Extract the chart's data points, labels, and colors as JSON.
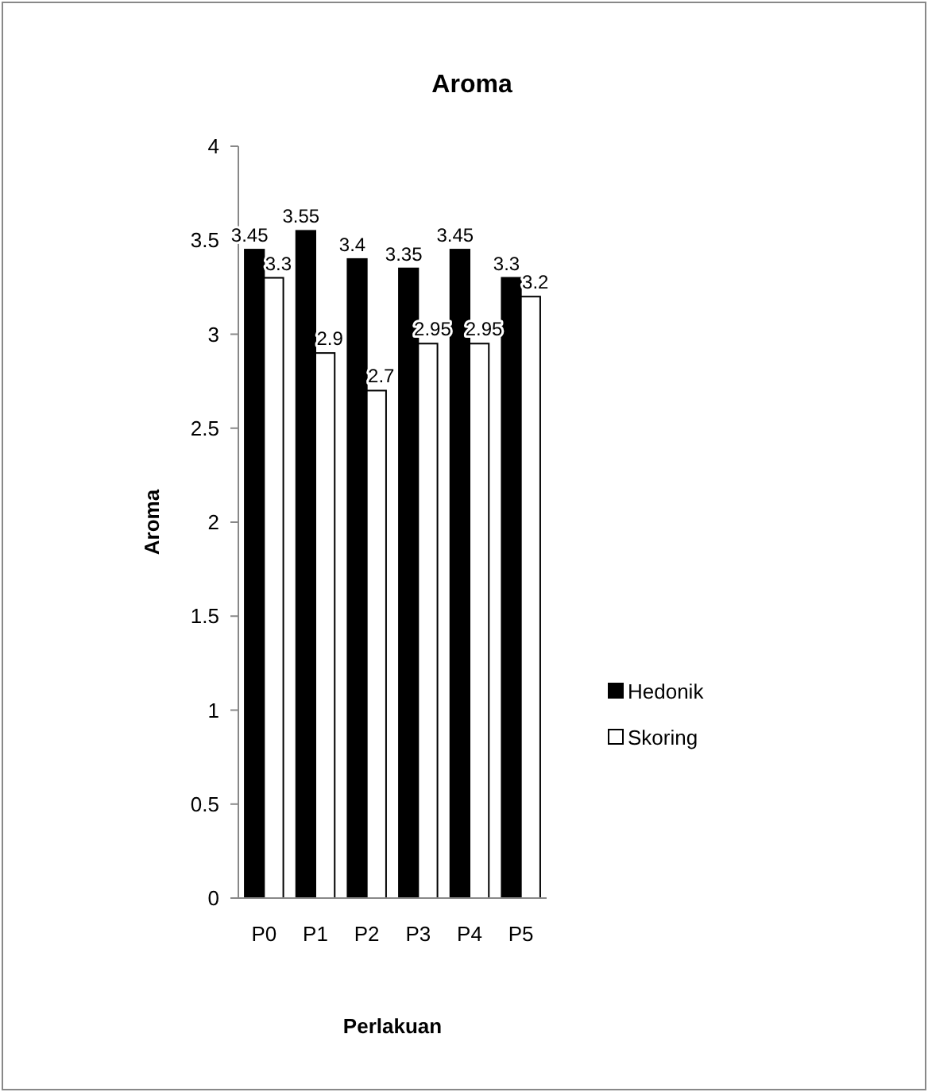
{
  "chart_data": {
    "type": "bar",
    "title": "Aroma",
    "xlabel": "Perlakuan",
    "ylabel": "Aroma",
    "categories": [
      "P0",
      "P1",
      "P2",
      "P3",
      "P4",
      "P5"
    ],
    "series": [
      {
        "name": "Hedonik",
        "color": "#000000",
        "values": [
          3.45,
          3.55,
          3.4,
          3.35,
          3.45,
          3.3
        ]
      },
      {
        "name": "Skoring",
        "color": "#ffffff",
        "values": [
          3.3,
          2.9,
          2.7,
          2.95,
          2.95,
          3.2
        ]
      }
    ],
    "ylim": [
      0,
      4
    ],
    "yticks": [
      0,
      0.5,
      1,
      1.5,
      2,
      2.5,
      3,
      3.5,
      4
    ],
    "grid": false,
    "legend": "right",
    "data_labels": true
  }
}
